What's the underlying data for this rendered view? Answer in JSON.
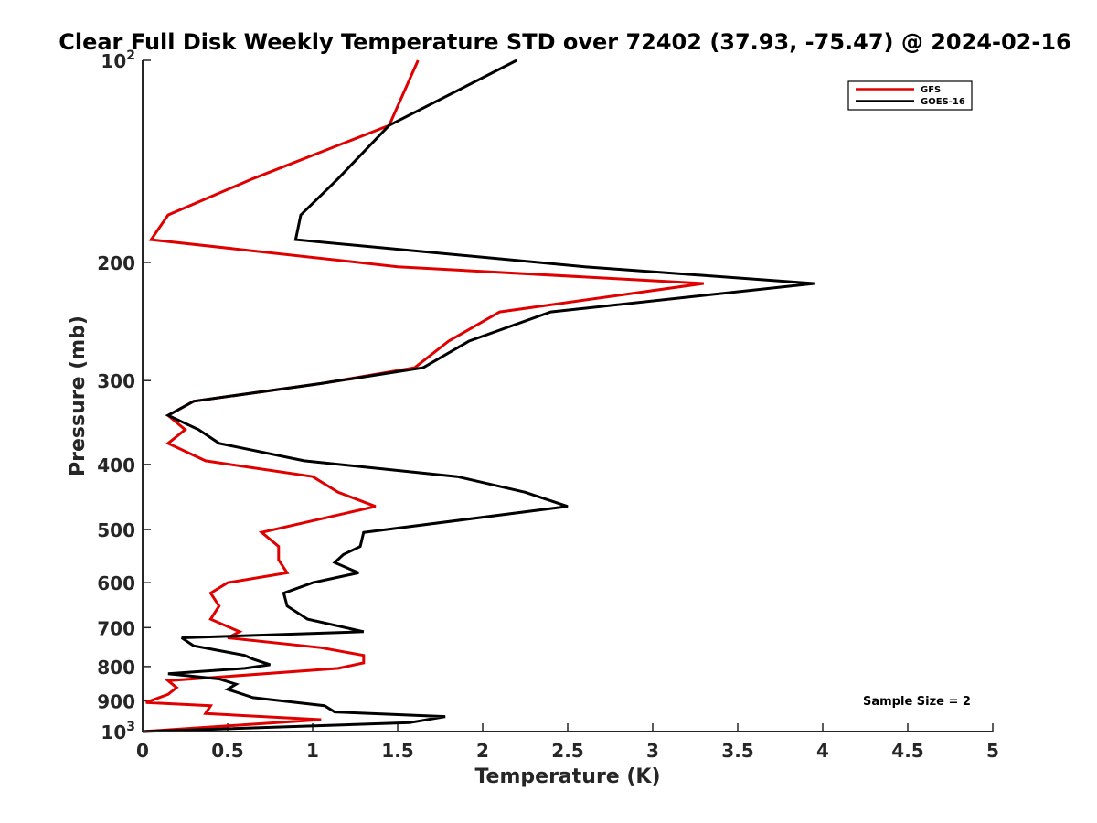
{
  "chart_data": {
    "type": "line",
    "title": "Clear Full Disk Weekly Temperature STD over 72402 (37.93, -75.47) @ 2024-02-16",
    "xlabel": "Temperature (K)",
    "ylabel": "Pressure (mb)",
    "xlim": [
      0,
      5
    ],
    "ylim": [
      100,
      1000
    ],
    "y_scale": "log",
    "y_reversed": true,
    "x_ticks": [
      {
        "value": 0,
        "label": "0"
      },
      {
        "value": 0.5,
        "label": "0.5"
      },
      {
        "value": 1,
        "label": "1"
      },
      {
        "value": 1.5,
        "label": "1.5"
      },
      {
        "value": 2,
        "label": "2"
      },
      {
        "value": 2.5,
        "label": "2.5"
      },
      {
        "value": 3,
        "label": "3"
      },
      {
        "value": 3.5,
        "label": "3.5"
      },
      {
        "value": 4,
        "label": "4"
      },
      {
        "value": 4.5,
        "label": "4.5"
      },
      {
        "value": 5,
        "label": "5"
      }
    ],
    "y_ticks": [
      {
        "value": 100,
        "base": "10",
        "exp": "2"
      },
      {
        "value": 200,
        "label": "200"
      },
      {
        "value": 300,
        "label": "300"
      },
      {
        "value": 400,
        "label": "400"
      },
      {
        "value": 500,
        "label": "500"
      },
      {
        "value": 600,
        "label": "600"
      },
      {
        "value": 700,
        "label": "700"
      },
      {
        "value": 800,
        "label": "800"
      },
      {
        "value": 900,
        "label": "900"
      },
      {
        "value": 1000,
        "base": "10",
        "exp": "3"
      }
    ],
    "legend_position": "top-right",
    "series": [
      {
        "name": "GFS",
        "color": "#e00000",
        "points": [
          [
            1.62,
            100
          ],
          [
            1.45,
            125
          ],
          [
            0.65,
            150
          ],
          [
            0.15,
            170
          ],
          [
            0.05,
            185
          ],
          [
            1.5,
            203
          ],
          [
            3.3,
            215
          ],
          [
            2.1,
            237
          ],
          [
            1.8,
            262
          ],
          [
            1.6,
            287
          ],
          [
            1.05,
            303
          ],
          [
            0.3,
            322
          ],
          [
            0.15,
            338
          ],
          [
            0.25,
            355
          ],
          [
            0.15,
            372
          ],
          [
            0.37,
            395
          ],
          [
            1.0,
            417
          ],
          [
            1.15,
            440
          ],
          [
            1.37,
            462
          ],
          [
            0.7,
            505
          ],
          [
            0.8,
            530
          ],
          [
            0.8,
            555
          ],
          [
            0.85,
            580
          ],
          [
            0.5,
            600
          ],
          [
            0.4,
            622
          ],
          [
            0.45,
            650
          ],
          [
            0.4,
            680
          ],
          [
            0.57,
            710
          ],
          [
            0.5,
            725
          ],
          [
            1.05,
            750
          ],
          [
            1.3,
            770
          ],
          [
            1.3,
            790
          ],
          [
            1.15,
            805
          ],
          [
            0.15,
            840
          ],
          [
            0.2,
            860
          ],
          [
            0.15,
            880
          ],
          [
            0.02,
            905
          ],
          [
            0.4,
            915
          ],
          [
            0.37,
            940
          ],
          [
            1.05,
            960
          ],
          [
            0.0,
            1000
          ]
        ]
      },
      {
        "name": "GOES-16",
        "color": "#000000",
        "points": [
          [
            2.2,
            100
          ],
          [
            1.45,
            125
          ],
          [
            1.15,
            150
          ],
          [
            0.93,
            170
          ],
          [
            0.9,
            185
          ],
          [
            2.6,
            203
          ],
          [
            3.95,
            215
          ],
          [
            2.4,
            237
          ],
          [
            1.92,
            262
          ],
          [
            1.65,
            287
          ],
          [
            1.05,
            303
          ],
          [
            0.3,
            322
          ],
          [
            0.15,
            338
          ],
          [
            0.33,
            355
          ],
          [
            0.45,
            372
          ],
          [
            0.95,
            395
          ],
          [
            1.85,
            417
          ],
          [
            2.25,
            440
          ],
          [
            2.5,
            462
          ],
          [
            1.3,
            505
          ],
          [
            1.28,
            530
          ],
          [
            1.18,
            545
          ],
          [
            1.13,
            560
          ],
          [
            1.27,
            580
          ],
          [
            1.0,
            600
          ],
          [
            0.83,
            622
          ],
          [
            0.85,
            650
          ],
          [
            0.97,
            680
          ],
          [
            1.3,
            710
          ],
          [
            0.23,
            725
          ],
          [
            0.3,
            745
          ],
          [
            0.6,
            770
          ],
          [
            0.65,
            780
          ],
          [
            0.75,
            795
          ],
          [
            0.6,
            805
          ],
          [
            0.15,
            820
          ],
          [
            0.45,
            835
          ],
          [
            0.55,
            850
          ],
          [
            0.5,
            865
          ],
          [
            0.65,
            890
          ],
          [
            1.07,
            915
          ],
          [
            1.13,
            935
          ],
          [
            1.78,
            950
          ],
          [
            1.57,
            970
          ],
          [
            0.0,
            1000
          ]
        ]
      }
    ],
    "annotations": [
      "Sample Size = 2"
    ]
  }
}
